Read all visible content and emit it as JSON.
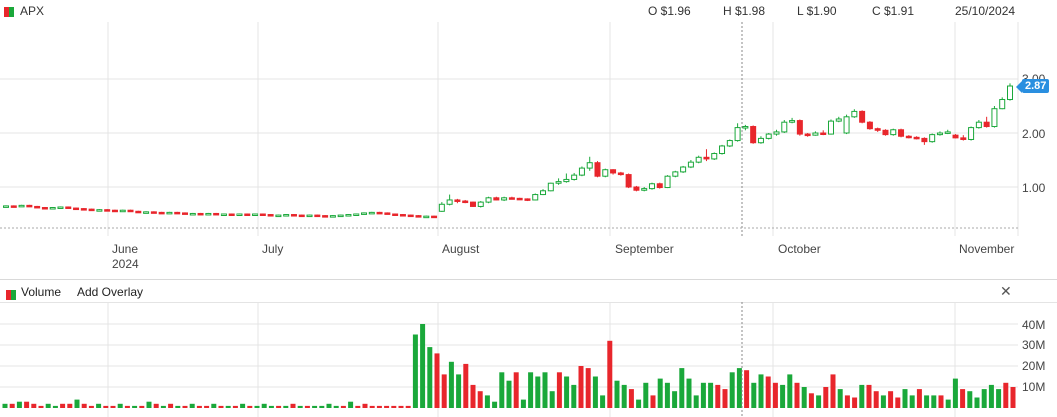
{
  "header": {
    "symbol": "APX",
    "open": "O $1.96",
    "high": "H $1.98",
    "low": "L $1.90",
    "close": "C $1.91",
    "date": "25/10/2024"
  },
  "price_axis": {
    "ticks": [
      "3.00",
      "2.00",
      "1.00"
    ],
    "last_price": "2.87"
  },
  "time_axis": {
    "labels": [
      "June",
      "2024",
      "July",
      "August",
      "September",
      "October",
      "November"
    ]
  },
  "volume_panel": {
    "title": "Volume",
    "add_overlay": "Add Overlay",
    "ticks": [
      "40M",
      "30M",
      "20M",
      "10M"
    ]
  },
  "colors": {
    "up": "#1aa83a",
    "down": "#e8262c",
    "accent": "#2a8fe0"
  },
  "chart_data": [
    {
      "type": "candlestick",
      "title": "APX",
      "x_range": [
        "2024-05-13",
        "2024-11-11"
      ],
      "ylim": [
        0.4,
        3.2
      ],
      "candles": [
        {
          "o": 0.63,
          "c": 0.65,
          "h": 0.66,
          "l": 0.62
        },
        {
          "o": 0.65,
          "c": 0.64,
          "h": 0.66,
          "l": 0.63
        },
        {
          "o": 0.64,
          "c": 0.66,
          "h": 0.67,
          "l": 0.63
        },
        {
          "o": 0.66,
          "c": 0.64,
          "h": 0.67,
          "l": 0.63
        },
        {
          "o": 0.64,
          "c": 0.62,
          "h": 0.65,
          "l": 0.61
        },
        {
          "o": 0.62,
          "c": 0.61,
          "h": 0.63,
          "l": 0.6
        },
        {
          "o": 0.61,
          "c": 0.62,
          "h": 0.63,
          "l": 0.6
        },
        {
          "o": 0.62,
          "c": 0.63,
          "h": 0.64,
          "l": 0.61
        },
        {
          "o": 0.63,
          "c": 0.61,
          "h": 0.64,
          "l": 0.6
        },
        {
          "o": 0.61,
          "c": 0.6,
          "h": 0.62,
          "l": 0.59
        },
        {
          "o": 0.6,
          "c": 0.59,
          "h": 0.61,
          "l": 0.58
        },
        {
          "o": 0.59,
          "c": 0.58,
          "h": 0.6,
          "l": 0.57
        },
        {
          "o": 0.58,
          "c": 0.58,
          "h": 0.59,
          "l": 0.57
        },
        {
          "o": 0.58,
          "c": 0.57,
          "h": 0.59,
          "l": 0.56
        },
        {
          "o": 0.57,
          "c": 0.56,
          "h": 0.58,
          "l": 0.55
        },
        {
          "o": 0.56,
          "c": 0.57,
          "h": 0.58,
          "l": 0.55
        },
        {
          "o": 0.57,
          "c": 0.55,
          "h": 0.58,
          "l": 0.54
        },
        {
          "o": 0.55,
          "c": 0.54,
          "h": 0.56,
          "l": 0.53
        },
        {
          "o": 0.54,
          "c": 0.54,
          "h": 0.55,
          "l": 0.53
        },
        {
          "o": 0.54,
          "c": 0.53,
          "h": 0.55,
          "l": 0.52
        },
        {
          "o": 0.53,
          "c": 0.52,
          "h": 0.54,
          "l": 0.51
        },
        {
          "o": 0.52,
          "c": 0.53,
          "h": 0.54,
          "l": 0.51
        },
        {
          "o": 0.53,
          "c": 0.52,
          "h": 0.54,
          "l": 0.51
        },
        {
          "o": 0.52,
          "c": 0.51,
          "h": 0.53,
          "l": 0.5
        },
        {
          "o": 0.51,
          "c": 0.51,
          "h": 0.52,
          "l": 0.5
        },
        {
          "o": 0.51,
          "c": 0.5,
          "h": 0.52,
          "l": 0.49
        },
        {
          "o": 0.5,
          "c": 0.51,
          "h": 0.52,
          "l": 0.49
        },
        {
          "o": 0.51,
          "c": 0.5,
          "h": 0.52,
          "l": 0.49
        },
        {
          "o": 0.5,
          "c": 0.5,
          "h": 0.51,
          "l": 0.49
        },
        {
          "o": 0.5,
          "c": 0.49,
          "h": 0.51,
          "l": 0.48
        },
        {
          "o": 0.49,
          "c": 0.5,
          "h": 0.51,
          "l": 0.48
        },
        {
          "o": 0.5,
          "c": 0.49,
          "h": 0.51,
          "l": 0.48
        },
        {
          "o": 0.49,
          "c": 0.5,
          "h": 0.51,
          "l": 0.48
        },
        {
          "o": 0.5,
          "c": 0.49,
          "h": 0.51,
          "l": 0.48
        },
        {
          "o": 0.49,
          "c": 0.48,
          "h": 0.5,
          "l": 0.47
        },
        {
          "o": 0.48,
          "c": 0.48,
          "h": 0.49,
          "l": 0.47
        },
        {
          "o": 0.48,
          "c": 0.49,
          "h": 0.5,
          "l": 0.47
        },
        {
          "o": 0.49,
          "c": 0.48,
          "h": 0.5,
          "l": 0.47
        },
        {
          "o": 0.48,
          "c": 0.47,
          "h": 0.49,
          "l": 0.46
        },
        {
          "o": 0.47,
          "c": 0.48,
          "h": 0.49,
          "l": 0.46
        },
        {
          "o": 0.48,
          "c": 0.47,
          "h": 0.49,
          "l": 0.46
        },
        {
          "o": 0.47,
          "c": 0.46,
          "h": 0.48,
          "l": 0.45
        },
        {
          "o": 0.46,
          "c": 0.47,
          "h": 0.48,
          "l": 0.45
        },
        {
          "o": 0.47,
          "c": 0.48,
          "h": 0.49,
          "l": 0.46
        },
        {
          "o": 0.48,
          "c": 0.49,
          "h": 0.5,
          "l": 0.47
        },
        {
          "o": 0.49,
          "c": 0.5,
          "h": 0.51,
          "l": 0.48
        },
        {
          "o": 0.5,
          "c": 0.52,
          "h": 0.53,
          "l": 0.49
        },
        {
          "o": 0.52,
          "c": 0.53,
          "h": 0.54,
          "l": 0.51
        },
        {
          "o": 0.53,
          "c": 0.52,
          "h": 0.54,
          "l": 0.51
        },
        {
          "o": 0.52,
          "c": 0.5,
          "h": 0.53,
          "l": 0.49
        },
        {
          "o": 0.5,
          "c": 0.49,
          "h": 0.51,
          "l": 0.48
        },
        {
          "o": 0.49,
          "c": 0.48,
          "h": 0.5,
          "l": 0.47
        },
        {
          "o": 0.48,
          "c": 0.47,
          "h": 0.49,
          "l": 0.46
        },
        {
          "o": 0.47,
          "c": 0.46,
          "h": 0.48,
          "l": 0.45
        },
        {
          "o": 0.46,
          "c": 0.46,
          "h": 0.47,
          "l": 0.45
        },
        {
          "o": 0.46,
          "c": 0.45,
          "h": 0.47,
          "l": 0.44
        },
        {
          "o": 0.55,
          "c": 0.68,
          "h": 0.72,
          "l": 0.54
        },
        {
          "o": 0.68,
          "c": 0.76,
          "h": 0.86,
          "l": 0.66
        },
        {
          "o": 0.76,
          "c": 0.74,
          "h": 0.78,
          "l": 0.7
        },
        {
          "o": 0.74,
          "c": 0.72,
          "h": 0.76,
          "l": 0.7
        },
        {
          "o": 0.72,
          "c": 0.64,
          "h": 0.73,
          "l": 0.63
        },
        {
          "o": 0.64,
          "c": 0.72,
          "h": 0.74,
          "l": 0.62
        },
        {
          "o": 0.72,
          "c": 0.8,
          "h": 0.82,
          "l": 0.7
        },
        {
          "o": 0.8,
          "c": 0.76,
          "h": 0.82,
          "l": 0.75
        },
        {
          "o": 0.76,
          "c": 0.8,
          "h": 0.82,
          "l": 0.74
        },
        {
          "o": 0.8,
          "c": 0.79,
          "h": 0.82,
          "l": 0.77
        },
        {
          "o": 0.79,
          "c": 0.78,
          "h": 0.8,
          "l": 0.76
        },
        {
          "o": 0.78,
          "c": 0.76,
          "h": 0.79,
          "l": 0.74
        },
        {
          "o": 0.76,
          "c": 0.86,
          "h": 0.88,
          "l": 0.75
        },
        {
          "o": 0.86,
          "c": 0.93,
          "h": 0.96,
          "l": 0.85
        },
        {
          "o": 0.93,
          "c": 1.07,
          "h": 1.08,
          "l": 0.92
        },
        {
          "o": 1.07,
          "c": 1.1,
          "h": 1.16,
          "l": 1.04
        },
        {
          "o": 1.1,
          "c": 1.14,
          "h": 1.25,
          "l": 1.08
        },
        {
          "o": 1.14,
          "c": 1.22,
          "h": 1.26,
          "l": 1.12
        },
        {
          "o": 1.22,
          "c": 1.35,
          "h": 1.38,
          "l": 1.2
        },
        {
          "o": 1.35,
          "c": 1.45,
          "h": 1.56,
          "l": 1.3
        },
        {
          "o": 1.45,
          "c": 1.2,
          "h": 1.48,
          "l": 1.18
        },
        {
          "o": 1.2,
          "c": 1.32,
          "h": 1.34,
          "l": 1.18
        },
        {
          "o": 1.32,
          "c": 1.26,
          "h": 1.33,
          "l": 1.23
        },
        {
          "o": 1.26,
          "c": 1.23,
          "h": 1.28,
          "l": 1.21
        },
        {
          "o": 1.23,
          "c": 1.0,
          "h": 1.25,
          "l": 0.98
        },
        {
          "o": 1.0,
          "c": 0.94,
          "h": 1.02,
          "l": 0.92
        },
        {
          "o": 0.94,
          "c": 0.97,
          "h": 1.0,
          "l": 0.92
        },
        {
          "o": 0.97,
          "c": 1.06,
          "h": 1.08,
          "l": 0.95
        },
        {
          "o": 1.06,
          "c": 0.99,
          "h": 1.08,
          "l": 0.97
        },
        {
          "o": 0.99,
          "c": 1.2,
          "h": 1.22,
          "l": 0.98
        },
        {
          "o": 1.2,
          "c": 1.28,
          "h": 1.3,
          "l": 1.18
        },
        {
          "o": 1.28,
          "c": 1.37,
          "h": 1.39,
          "l": 1.26
        },
        {
          "o": 1.37,
          "c": 1.46,
          "h": 1.5,
          "l": 1.35
        },
        {
          "o": 1.46,
          "c": 1.55,
          "h": 1.58,
          "l": 1.44
        },
        {
          "o": 1.55,
          "c": 1.52,
          "h": 1.7,
          "l": 1.48
        },
        {
          "o": 1.52,
          "c": 1.62,
          "h": 1.64,
          "l": 1.5
        },
        {
          "o": 1.62,
          "c": 1.76,
          "h": 1.78,
          "l": 1.6
        },
        {
          "o": 1.76,
          "c": 1.86,
          "h": 1.88,
          "l": 1.74
        },
        {
          "o": 1.86,
          "c": 2.1,
          "h": 2.18,
          "l": 1.84
        },
        {
          "o": 2.1,
          "c": 2.12,
          "h": 2.15,
          "l": 2.05
        },
        {
          "o": 2.12,
          "c": 1.82,
          "h": 2.14,
          "l": 1.8
        },
        {
          "o": 1.82,
          "c": 1.9,
          "h": 1.94,
          "l": 1.8
        },
        {
          "o": 1.9,
          "c": 1.98,
          "h": 2.0,
          "l": 1.88
        },
        {
          "o": 1.98,
          "c": 2.02,
          "h": 2.06,
          "l": 1.95
        },
        {
          "o": 2.02,
          "c": 2.2,
          "h": 2.24,
          "l": 2.0
        },
        {
          "o": 2.2,
          "c": 2.23,
          "h": 2.28,
          "l": 2.18
        },
        {
          "o": 2.23,
          "c": 1.98,
          "h": 2.25,
          "l": 1.95
        },
        {
          "o": 1.98,
          "c": 1.96,
          "h": 2.0,
          "l": 1.93
        },
        {
          "o": 1.96,
          "c": 2.0,
          "h": 2.03,
          "l": 1.95
        },
        {
          "o": 2.0,
          "c": 1.98,
          "h": 2.05,
          "l": 1.96
        },
        {
          "o": 1.98,
          "c": 2.22,
          "h": 2.25,
          "l": 1.97
        },
        {
          "o": 2.22,
          "c": 2.26,
          "h": 2.3,
          "l": 2.2
        },
        {
          "o": 2.0,
          "c": 2.3,
          "h": 2.34,
          "l": 1.98
        },
        {
          "o": 2.3,
          "c": 2.4,
          "h": 2.44,
          "l": 2.28
        },
        {
          "o": 2.4,
          "c": 2.2,
          "h": 2.42,
          "l": 2.18
        },
        {
          "o": 2.2,
          "c": 2.08,
          "h": 2.22,
          "l": 2.06
        },
        {
          "o": 2.08,
          "c": 2.05,
          "h": 2.1,
          "l": 2.02
        },
        {
          "o": 2.05,
          "c": 1.97,
          "h": 2.07,
          "l": 1.95
        },
        {
          "o": 1.97,
          "c": 2.06,
          "h": 2.08,
          "l": 1.95
        },
        {
          "o": 2.06,
          "c": 1.94,
          "h": 2.08,
          "l": 1.92
        },
        {
          "o": 1.94,
          "c": 1.92,
          "h": 1.96,
          "l": 1.9
        },
        {
          "o": 1.92,
          "c": 1.9,
          "h": 1.94,
          "l": 1.88
        },
        {
          "o": 1.9,
          "c": 1.84,
          "h": 1.92,
          "l": 1.78
        },
        {
          "o": 1.84,
          "c": 1.97,
          "h": 1.99,
          "l": 1.82
        },
        {
          "o": 1.97,
          "c": 2.0,
          "h": 2.03,
          "l": 1.95
        },
        {
          "o": 2.0,
          "c": 2.02,
          "h": 2.06,
          "l": 1.98
        },
        {
          "o": 1.96,
          "c": 1.91,
          "h": 1.98,
          "l": 1.9
        },
        {
          "o": 1.91,
          "c": 1.88,
          "h": 1.96,
          "l": 1.86
        },
        {
          "o": 1.88,
          "c": 2.1,
          "h": 2.12,
          "l": 1.86
        },
        {
          "o": 2.1,
          "c": 2.2,
          "h": 2.24,
          "l": 2.08
        },
        {
          "o": 2.2,
          "c": 2.12,
          "h": 2.3,
          "l": 2.1
        },
        {
          "o": 2.12,
          "c": 2.45,
          "h": 2.5,
          "l": 2.1
        },
        {
          "o": 2.45,
          "c": 2.62,
          "h": 2.66,
          "l": 2.44
        },
        {
          "o": 2.62,
          "c": 2.87,
          "h": 2.92,
          "l": 2.6
        }
      ]
    },
    {
      "type": "bar",
      "title": "Volume",
      "ylim": [
        0,
        45
      ],
      "unit": "M",
      "values": [
        2,
        2,
        3,
        3,
        2,
        1,
        2,
        1,
        2,
        2,
        4,
        2,
        1,
        2,
        1,
        1,
        2,
        1,
        1,
        1,
        3,
        2,
        1,
        2,
        1,
        1,
        2,
        1,
        1,
        2,
        1,
        1,
        1,
        2,
        1,
        1,
        2,
        1,
        1,
        1,
        2,
        1,
        1,
        1,
        1,
        2,
        1,
        1,
        3,
        1,
        2,
        1,
        1,
        1,
        1,
        1,
        1,
        35,
        40,
        29,
        26,
        16,
        22,
        16,
        21,
        11,
        8,
        6,
        3,
        17,
        13,
        17,
        4,
        17,
        15,
        17,
        8,
        17,
        15,
        11,
        20,
        19,
        15,
        6,
        32,
        13,
        11,
        9,
        4,
        12,
        6,
        14,
        12,
        8,
        19,
        14,
        6,
        12,
        12,
        11,
        9,
        17,
        19,
        18,
        12,
        16,
        15,
        12,
        11,
        16,
        12,
        10,
        7,
        6,
        10,
        16,
        9,
        6,
        5,
        11,
        11,
        8,
        6,
        8,
        5,
        9,
        6,
        9,
        6,
        6,
        6,
        4,
        14,
        9,
        8,
        5,
        9,
        11,
        9,
        12,
        10
      ],
      "up": [
        1,
        0,
        1,
        0,
        0,
        0,
        1,
        1,
        0,
        0,
        1,
        0,
        0,
        1,
        0,
        0,
        1,
        0,
        1,
        0,
        1,
        0,
        1,
        0,
        1,
        0,
        1,
        0,
        0,
        1,
        0,
        1,
        0,
        1,
        0,
        1,
        1,
        1,
        0,
        1,
        0,
        1,
        0,
        1,
        1,
        1,
        1,
        0,
        1,
        0,
        0,
        0,
        0,
        0,
        0,
        0,
        0,
        1,
        1,
        1,
        0,
        0,
        1,
        1,
        0,
        0,
        0,
        1,
        1,
        1,
        1,
        0,
        1,
        1,
        1,
        1,
        1,
        0,
        1,
        1,
        0,
        0,
        1,
        1,
        0,
        1,
        1,
        0,
        1,
        1,
        0,
        1,
        1,
        1,
        1,
        1,
        1,
        1,
        1,
        0,
        0,
        1,
        1,
        0,
        1,
        1,
        0,
        0,
        1,
        1,
        0,
        1,
        0,
        1,
        0,
        0,
        1,
        0,
        0,
        1,
        0,
        0,
        1,
        0,
        0,
        1,
        1,
        0,
        1,
        1,
        0,
        1,
        1,
        0,
        1,
        1,
        1,
        1,
        1
      ]
    }
  ]
}
